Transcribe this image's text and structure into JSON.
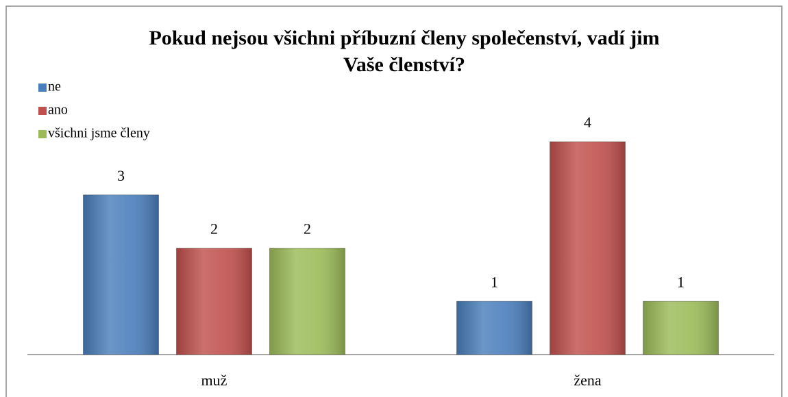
{
  "chart_data": {
    "type": "bar",
    "title": [
      "Pokud nejsou všichni příbuzní členy společenství, vadí jim",
      "Vaše členství?"
    ],
    "categories": [
      "muž",
      "žena"
    ],
    "series": [
      {
        "name": "ne",
        "color": "#4a7ebb",
        "values": [
          3,
          1
        ]
      },
      {
        "name": "ano",
        "color": "#c0504d",
        "values": [
          2,
          4
        ]
      },
      {
        "name": "všichni jsme členy",
        "color": "#9bbb59",
        "values": [
          2,
          1
        ]
      }
    ],
    "ylim": [
      0,
      4
    ],
    "legend": "top-left"
  }
}
